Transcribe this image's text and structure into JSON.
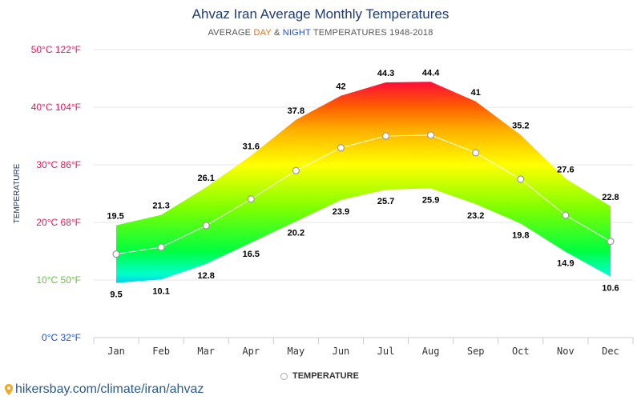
{
  "title": "Ahvaz Iran Average Monthly Temperatures",
  "subtitle": {
    "prefix": "AVERAGE ",
    "day": "DAY",
    "amp": " & ",
    "night": "NIGHT",
    "suffix": " TEMPERATURES 1948-2018"
  },
  "y_axis_title": "TEMPERATURE",
  "legend_label": "TEMPERATURE",
  "source": "hikersbay.com/climate/iran/ahvaz",
  "colors": {
    "title": "#1f3c6e",
    "grid": "#e6e6e6",
    "mean_line": "#ffffff",
    "label_color": "#000000"
  },
  "chart_data": {
    "type": "area",
    "categories": [
      "Jan",
      "Feb",
      "Mar",
      "Apr",
      "May",
      "Jun",
      "Jul",
      "Aug",
      "Sep",
      "Oct",
      "Nov",
      "Dec"
    ],
    "series": [
      {
        "name": "DAY",
        "values": [
          19.5,
          21.3,
          26.1,
          31.6,
          37.8,
          42,
          44.3,
          44.4,
          41,
          35.2,
          27.6,
          22.8
        ]
      },
      {
        "name": "NIGHT",
        "values": [
          9.5,
          10.1,
          12.8,
          16.5,
          20.2,
          23.9,
          25.7,
          25.9,
          23.2,
          19.8,
          14.9,
          10.6
        ]
      },
      {
        "name": "TEMPERATURE",
        "values": [
          14.5,
          15.7,
          19.45,
          24.05,
          29,
          32.95,
          35,
          35.15,
          32.1,
          27.5,
          21.25,
          16.7
        ]
      }
    ],
    "y_ticks": [
      {
        "c": 0,
        "label": "0°C 32°F",
        "color": "#1d4ed8"
      },
      {
        "c": 10,
        "label": "10°C 50°F",
        "color": "#6cc04a"
      },
      {
        "c": 20,
        "label": "20°C 68°F",
        "color": "#e8175d"
      },
      {
        "c": 30,
        "label": "30°C 86°F",
        "color": "#e8175d"
      },
      {
        "c": 40,
        "label": "40°C 104°F",
        "color": "#e8175d"
      },
      {
        "c": 50,
        "label": "50°C 122°F",
        "color": "#e8175d"
      }
    ],
    "ylim": [
      0,
      50
    ],
    "ylabel": "TEMPERATURE",
    "grid": true,
    "legend": "bottom-center"
  }
}
